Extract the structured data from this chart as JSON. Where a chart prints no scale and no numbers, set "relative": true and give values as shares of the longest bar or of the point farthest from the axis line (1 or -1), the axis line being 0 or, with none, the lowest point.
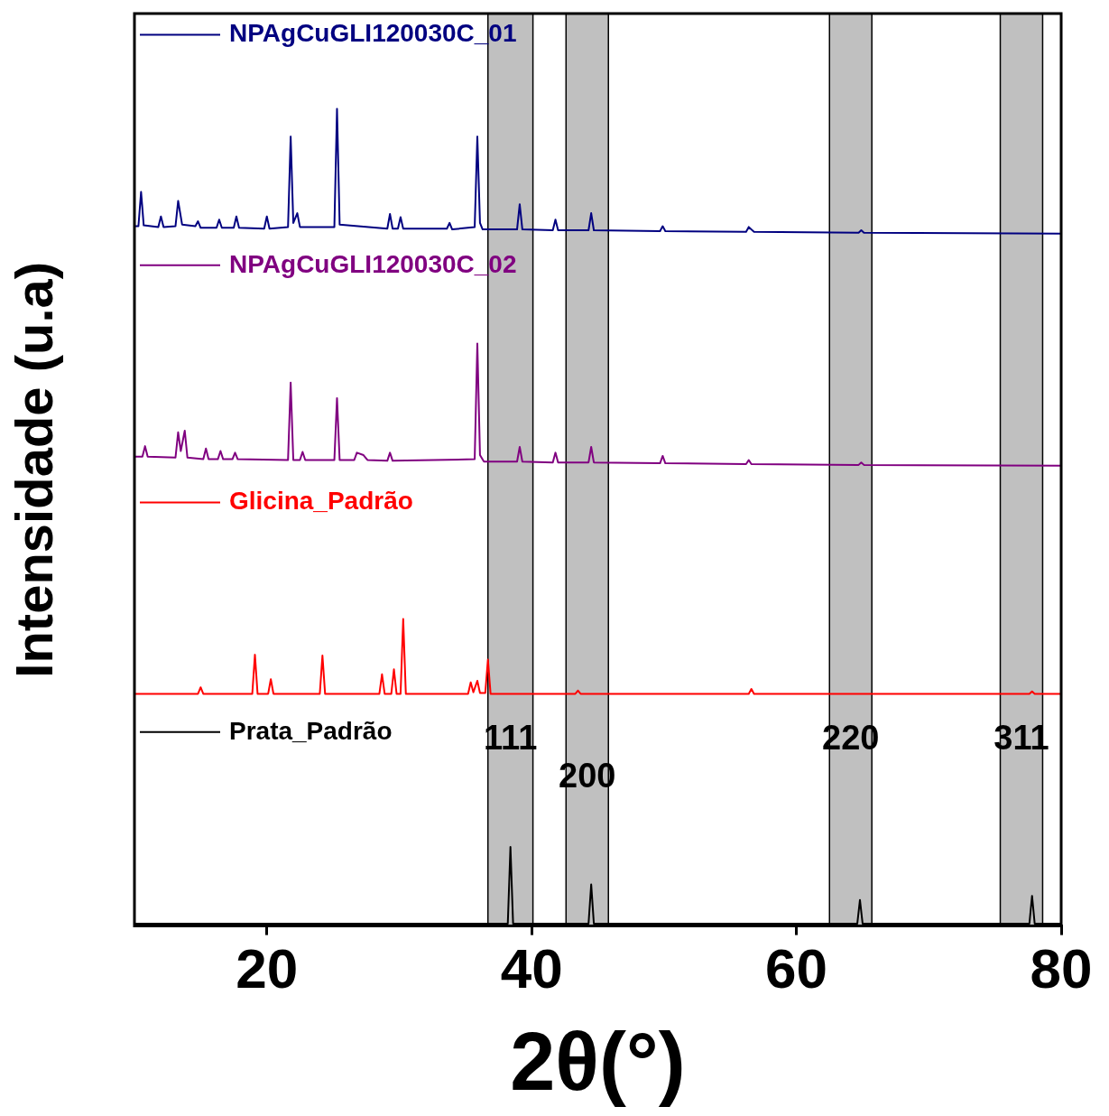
{
  "chart_data": {
    "type": "line",
    "relative": true,
    "xlabel": "2θ(°)",
    "ylabel": "Intensidade (u.a)",
    "xlim": [
      10,
      80
    ],
    "xticks": [
      20,
      40,
      60,
      80
    ],
    "grid": false,
    "legend": "top left",
    "marker": "none",
    "line_style": "solid",
    "series": [
      {
        "name": "NPAgCuGLI120030C_01",
        "color": "#000080",
        "x": [
          10.0,
          10.3,
          10.5,
          10.7,
          11.8,
          12.0,
          12.2,
          13.1,
          13.3,
          13.6,
          14.6,
          14.8,
          15.0,
          16.2,
          16.4,
          16.6,
          17.5,
          17.7,
          17.9,
          19.8,
          20.0,
          20.2,
          21.6,
          21.8,
          22.0,
          22.3,
          22.5,
          25.1,
          25.3,
          25.5,
          29.1,
          29.3,
          29.5,
          29.9,
          30.1,
          30.3,
          33.6,
          33.8,
          34.0,
          35.7,
          35.9,
          36.1,
          36.3,
          38.9,
          39.1,
          39.3,
          41.6,
          41.8,
          42.0,
          44.3,
          44.5,
          44.7,
          49.7,
          49.9,
          50.1,
          56.2,
          56.4,
          56.8,
          64.7,
          64.9,
          65.1,
          80
        ],
        "values": [
          0.856,
          0.856,
          0.898,
          0.857,
          0.855,
          0.868,
          0.855,
          0.856,
          0.887,
          0.858,
          0.856,
          0.862,
          0.854,
          0.854,
          0.864,
          0.854,
          0.854,
          0.868,
          0.854,
          0.853,
          0.868,
          0.853,
          0.855,
          0.966,
          0.86,
          0.872,
          0.855,
          0.855,
          1.0,
          0.858,
          0.853,
          0.871,
          0.853,
          0.853,
          0.867,
          0.853,
          0.853,
          0.86,
          0.852,
          0.855,
          0.966,
          0.86,
          0.852,
          0.852,
          0.883,
          0.852,
          0.851,
          0.864,
          0.851,
          0.851,
          0.872,
          0.851,
          0.85,
          0.856,
          0.85,
          0.849,
          0.855,
          0.849,
          0.848,
          0.851,
          0.848,
          0.847
        ]
      },
      {
        "name": "NPAgCuGLI120030C_02",
        "color": "#800080",
        "x": [
          10,
          10.6,
          10.8,
          11.0,
          13.1,
          13.3,
          13.5,
          13.8,
          14.0,
          15.2,
          15.4,
          15.6,
          16.3,
          16.5,
          16.7,
          17.4,
          17.6,
          17.8,
          21.6,
          21.8,
          22.0,
          22.5,
          22.7,
          22.9,
          25.1,
          25.3,
          25.5,
          26.6,
          26.8,
          27.3,
          27.6,
          29.1,
          29.3,
          29.5,
          35.7,
          35.9,
          36.1,
          36.4,
          38.9,
          39.1,
          39.3,
          41.6,
          41.8,
          42.0,
          44.3,
          44.5,
          44.7,
          49.7,
          49.9,
          50.1,
          56.2,
          56.4,
          56.6,
          64.7,
          64.9,
          65.1,
          80
        ],
        "values": [
          0.573,
          0.573,
          0.586,
          0.573,
          0.572,
          0.603,
          0.58,
          0.605,
          0.572,
          0.57,
          0.583,
          0.57,
          0.57,
          0.58,
          0.57,
          0.57,
          0.578,
          0.57,
          0.569,
          0.664,
          0.569,
          0.569,
          0.579,
          0.569,
          0.569,
          0.645,
          0.569,
          0.569,
          0.578,
          0.575,
          0.569,
          0.568,
          0.578,
          0.568,
          0.57,
          0.712,
          0.575,
          0.567,
          0.567,
          0.585,
          0.567,
          0.566,
          0.578,
          0.566,
          0.566,
          0.585,
          0.566,
          0.565,
          0.574,
          0.565,
          0.564,
          0.569,
          0.564,
          0.563,
          0.566,
          0.563,
          0.562
        ]
      },
      {
        "name": "Glicina_Padrão",
        "color": "#ff0000",
        "x": [
          10,
          14.8,
          15.0,
          15.2,
          18.9,
          19.1,
          19.3,
          20.1,
          20.3,
          20.5,
          24.0,
          24.2,
          24.4,
          28.5,
          28.7,
          28.9,
          29.4,
          29.6,
          29.8,
          30.1,
          30.3,
          30.5,
          35.2,
          35.4,
          35.6,
          35.9,
          36.1,
          36.5,
          36.7,
          36.9,
          43.3,
          43.5,
          43.7,
          56.4,
          56.6,
          56.8,
          77.6,
          77.8,
          78.0,
          80
        ],
        "values": [
          0.282,
          0.282,
          0.29,
          0.282,
          0.282,
          0.33,
          0.282,
          0.282,
          0.3,
          0.282,
          0.282,
          0.329,
          0.282,
          0.282,
          0.306,
          0.282,
          0.282,
          0.312,
          0.282,
          0.282,
          0.374,
          0.282,
          0.282,
          0.296,
          0.284,
          0.298,
          0.283,
          0.283,
          0.324,
          0.282,
          0.282,
          0.286,
          0.282,
          0.282,
          0.288,
          0.282,
          0.282,
          0.285,
          0.282,
          0.282
        ]
      },
      {
        "name": "Prata_Padrão",
        "color": "#000000",
        "x": [
          10,
          38.2,
          38.4,
          38.6,
          44.3,
          44.5,
          44.7,
          64.6,
          64.8,
          65.0,
          77.6,
          77.8,
          78.0,
          80
        ],
        "values": [
          0,
          0,
          0.094,
          0,
          0,
          0.048,
          0,
          0,
          0.029,
          0,
          0,
          0.034,
          0,
          0
        ]
      }
    ],
    "bands": [
      {
        "axis": "x",
        "from": 36.7,
        "to": 40.1,
        "label": "111",
        "color": "#c0c0c0"
      },
      {
        "axis": "x",
        "from": 42.6,
        "to": 45.8,
        "label": "200",
        "color": "#c0c0c0"
      },
      {
        "axis": "x",
        "from": 62.5,
        "to": 65.7,
        "label": "220",
        "color": "#c0c0c0"
      },
      {
        "axis": "x",
        "from": 75.4,
        "to": 78.6,
        "label": "311",
        "color": "#c0c0c0"
      }
    ]
  }
}
